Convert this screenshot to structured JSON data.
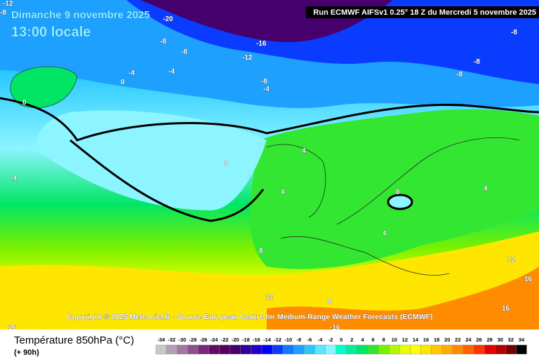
{
  "header": {
    "date": "Dimanche 9 novembre 2025",
    "time": "13:00 locale",
    "run": "Run ECMWF AIFSv1 0.25° 18 Z du Mercredi 5 novembre 2025",
    "copyright": "Copyright © 2025 Meteociel.fr - Source European Centre for Medium-Range Weather Forecasts (ECMWF)"
  },
  "footer": {
    "title": "Température 850hPa (°C)",
    "lead": "(+ 90h)"
  },
  "legend": {
    "ticks": [
      -34,
      -32,
      -30,
      -28,
      -26,
      -24,
      -22,
      -20,
      -18,
      -16,
      -14,
      -12,
      -10,
      -8,
      -6,
      -4,
      -2,
      0,
      2,
      4,
      6,
      8,
      10,
      12,
      14,
      16,
      18,
      20,
      22,
      24,
      26,
      28,
      30,
      32,
      34
    ],
    "colors": [
      "#c8c8c8",
      "#b4a0b4",
      "#a078a0",
      "#8c508c",
      "#782878",
      "#640a64",
      "#5a005a",
      "#46006e",
      "#320096",
      "#1e00c8",
      "#0000ff",
      "#0a3cff",
      "#1478ff",
      "#1ea0ff",
      "#28c8ff",
      "#5ae6ff",
      "#8cf5ff",
      "#00ffc8",
      "#00f096",
      "#00e664",
      "#32e632",
      "#78f000",
      "#b4f500",
      "#e6ff00",
      "#ffff00",
      "#ffe600",
      "#ffc800",
      "#ffaa00",
      "#ff8c00",
      "#ff6400",
      "#ff3200",
      "#e60000",
      "#b40000",
      "#780000",
      "#000000"
    ]
  },
  "contour_labels": [
    "-12",
    "-20",
    "-16",
    "-12",
    "-8",
    "-8",
    "-4",
    "-4",
    "0",
    "-8",
    "-4",
    "-8",
    "-8",
    "-8",
    "0",
    "-4",
    "0",
    "4",
    "4",
    "0",
    "4",
    "4",
    "8",
    "12",
    "8",
    "12",
    "16",
    "16",
    "16",
    "-16",
    "-8"
  ]
}
